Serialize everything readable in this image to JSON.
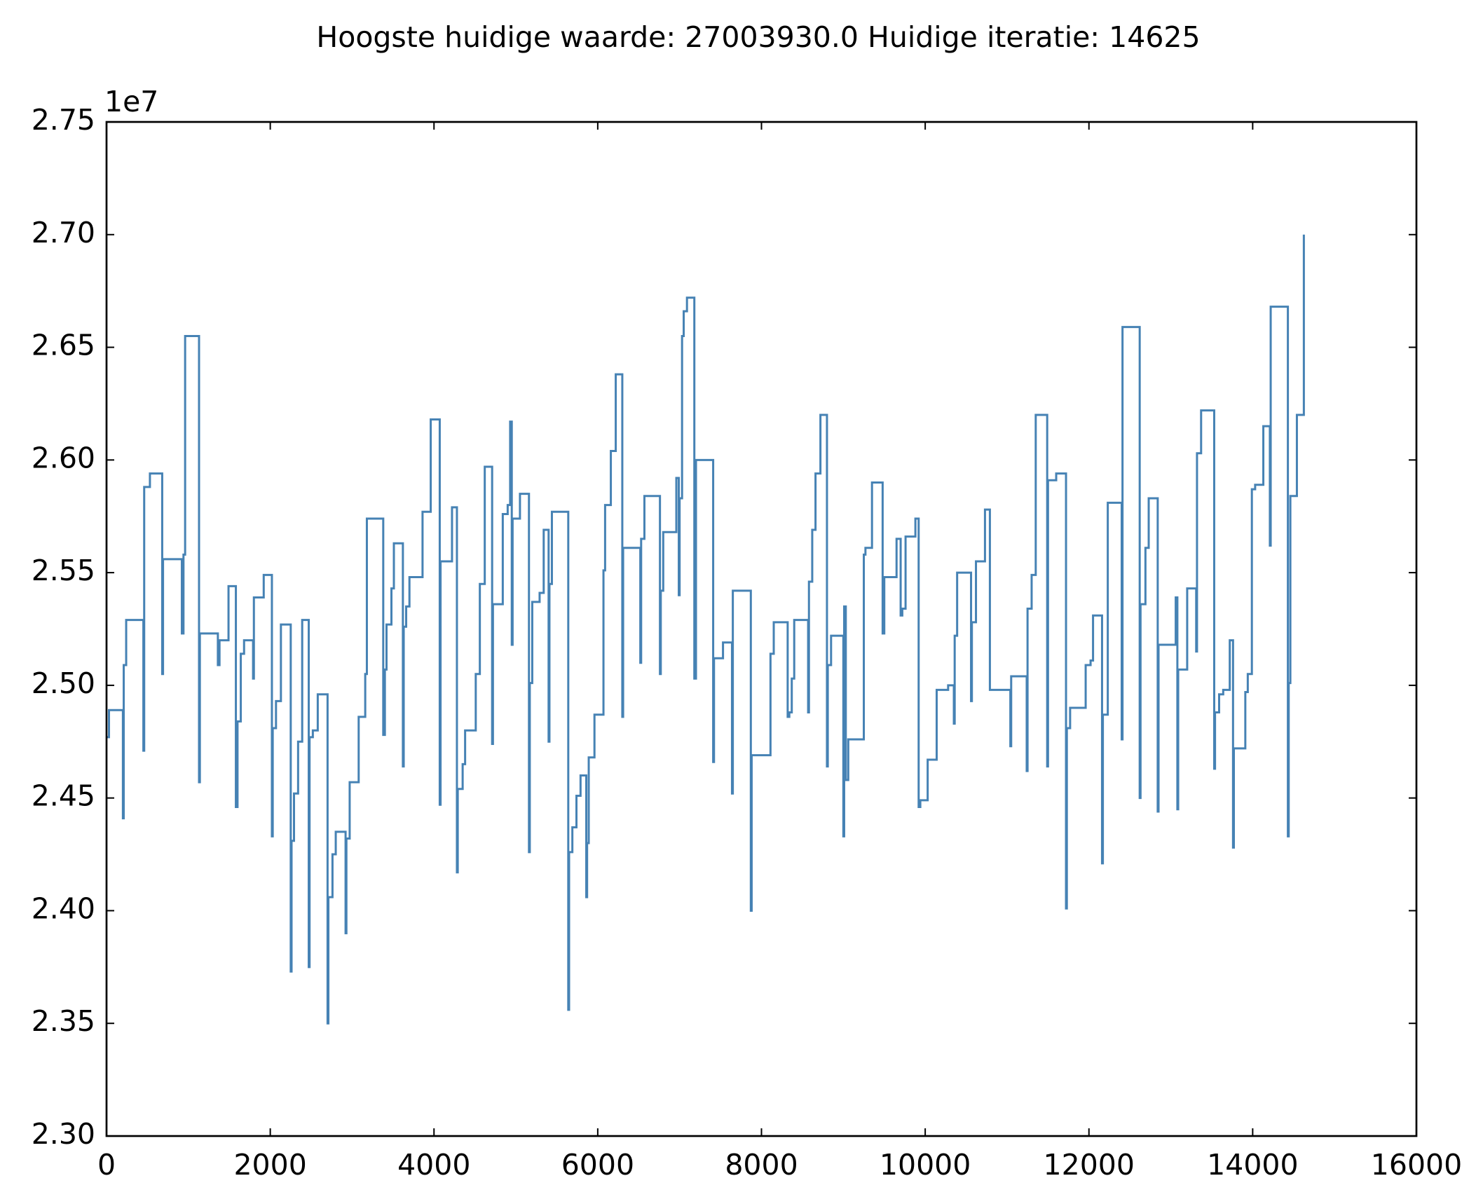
{
  "chart_data": {
    "type": "line",
    "title": "Hoogste huidige waarde: 27003930.0 Huidige iteratie: 14625",
    "y_offset_label": "1e7",
    "color": "#4682b4",
    "x": [
      0,
      30,
      30,
      200,
      200,
      210,
      210,
      240,
      240,
      450,
      450,
      460,
      460,
      530,
      530,
      680,
      680,
      690,
      690,
      920,
      920,
      940,
      940,
      960,
      960,
      1130,
      1130,
      1140,
      1140,
      1360,
      1360,
      1380,
      1380,
      1490,
      1490,
      1580,
      1580,
      1600,
      1600,
      1640,
      1640,
      1680,
      1680,
      1790,
      1790,
      1800,
      1800,
      1920,
      1920,
      2020,
      2020,
      2030,
      2030,
      2070,
      2070,
      2130,
      2130,
      2250,
      2250,
      2260,
      2260,
      2290,
      2290,
      2340,
      2340,
      2390,
      2390,
      2470,
      2470,
      2480,
      2480,
      2520,
      2520,
      2580,
      2580,
      2700,
      2700,
      2710,
      2710,
      2760,
      2760,
      2800,
      2800,
      2920,
      2920,
      2930,
      2930,
      2970,
      2970,
      3080,
      3080,
      3160,
      3160,
      3180,
      3180,
      3380,
      3380,
      3400,
      3400,
      3420,
      3420,
      3480,
      3480,
      3510,
      3510,
      3620,
      3620,
      3630,
      3630,
      3660,
      3660,
      3700,
      3700,
      3860,
      3860,
      3960,
      3960,
      4070,
      4070,
      4080,
      4080,
      4220,
      4220,
      4280,
      4280,
      4290,
      4290,
      4350,
      4350,
      4380,
      4380,
      4510,
      4510,
      4560,
      4560,
      4620,
      4620,
      4710,
      4710,
      4720,
      4720,
      4840,
      4840,
      4900,
      4900,
      4930,
      4930,
      4950,
      4950,
      4960,
      4960,
      5050,
      5050,
      5160,
      5160,
      5170,
      5170,
      5200,
      5200,
      5290,
      5290,
      5340,
      5340,
      5400,
      5400,
      5410,
      5410,
      5440,
      5440,
      5640,
      5640,
      5650,
      5650,
      5690,
      5690,
      5740,
      5740,
      5790,
      5790,
      5860,
      5860,
      5870,
      5870,
      5890,
      5890,
      5960,
      5960,
      6070,
      6070,
      6090,
      6090,
      6160,
      6160,
      6220,
      6220,
      6300,
      6300,
      6310,
      6310,
      6520,
      6520,
      6530,
      6530,
      6570,
      6570,
      6760,
      6760,
      6770,
      6770,
      6800,
      6800,
      6960,
      6960,
      6990,
      6990,
      7000,
      7000,
      7030,
      7030,
      7050,
      7050,
      7090,
      7090,
      7180,
      7180,
      7200,
      7200,
      7410,
      7410,
      7420,
      7420,
      7530,
      7530,
      7640,
      7640,
      7650,
      7650,
      7870,
      7870,
      7880,
      7880,
      8110,
      8110,
      8150,
      8150,
      8320,
      8320,
      8340,
      8340,
      8370,
      8370,
      8400,
      8400,
      8570,
      8570,
      8580,
      8580,
      8620,
      8620,
      8660,
      8660,
      8720,
      8720,
      8800,
      8800,
      8810,
      8810,
      8850,
      8850,
      9000,
      9000,
      9010,
      9010,
      9030,
      9030,
      9060,
      9060,
      9250,
      9250,
      9270,
      9270,
      9350,
      9350,
      9480,
      9480,
      9500,
      9500,
      9650,
      9650,
      9700,
      9700,
      9720,
      9720,
      9760,
      9760,
      9880,
      9880,
      9920,
      9920,
      9940,
      9940,
      10030,
      10030,
      10140,
      10140,
      10280,
      10280,
      10350,
      10350,
      10360,
      10360,
      10390,
      10390,
      10560,
      10560,
      10570,
      10570,
      10620,
      10620,
      10730,
      10730,
      10790,
      10790,
      11040,
      11040,
      11050,
      11050,
      11240,
      11240,
      11250,
      11250,
      11300,
      11300,
      11350,
      11350,
      11490,
      11490,
      11500,
      11500,
      11600,
      11600,
      11720,
      11720,
      11730,
      11730,
      11770,
      11770,
      11960,
      11960,
      12020,
      12020,
      12050,
      12050,
      12160,
      12160,
      12170,
      12170,
      12230,
      12230,
      12400,
      12400,
      12410,
      12410,
      12620,
      12620,
      12630,
      12630,
      12690,
      12690,
      12730,
      12730,
      12840,
      12840,
      12850,
      12850,
      13060,
      13060,
      13080,
      13080,
      13090,
      13090,
      13200,
      13200,
      13310,
      13310,
      13320,
      13320,
      13370,
      13370,
      13530,
      13530,
      13540,
      13540,
      13590,
      13590,
      13640,
      13640,
      13720,
      13720,
      13760,
      13760,
      13770,
      13770,
      13910,
      13910,
      13940,
      13940,
      13990,
      13990,
      14030,
      14030,
      14130,
      14130,
      14210,
      14210,
      14220,
      14220,
      14430,
      14430,
      14440,
      14440,
      14460,
      14460,
      14540,
      14540,
      14625,
      14625
    ],
    "values": [
      2.477,
      2.477,
      2.489,
      2.489,
      2.441,
      2.441,
      2.509,
      2.509,
      2.529,
      2.529,
      2.471,
      2.471,
      2.588,
      2.588,
      2.594,
      2.594,
      2.505,
      2.505,
      2.556,
      2.556,
      2.523,
      2.523,
      2.558,
      2.558,
      2.655,
      2.655,
      2.457,
      2.457,
      2.523,
      2.523,
      2.509,
      2.509,
      2.52,
      2.52,
      2.544,
      2.544,
      2.446,
      2.446,
      2.484,
      2.484,
      2.514,
      2.514,
      2.52,
      2.52,
      2.503,
      2.503,
      2.539,
      2.539,
      2.549,
      2.549,
      2.433,
      2.433,
      2.481,
      2.481,
      2.493,
      2.493,
      2.527,
      2.527,
      2.373,
      2.373,
      2.431,
      2.431,
      2.452,
      2.452,
      2.475,
      2.475,
      2.529,
      2.529,
      2.375,
      2.375,
      2.477,
      2.477,
      2.48,
      2.48,
      2.496,
      2.496,
      2.35,
      2.35,
      2.406,
      2.406,
      2.425,
      2.425,
      2.435,
      2.435,
      2.39,
      2.39,
      2.432,
      2.432,
      2.457,
      2.457,
      2.486,
      2.486,
      2.505,
      2.505,
      2.574,
      2.574,
      2.478,
      2.478,
      2.507,
      2.507,
      2.527,
      2.527,
      2.543,
      2.543,
      2.563,
      2.563,
      2.464,
      2.464,
      2.526,
      2.526,
      2.535,
      2.535,
      2.548,
      2.548,
      2.577,
      2.577,
      2.618,
      2.618,
      2.447,
      2.447,
      2.555,
      2.555,
      2.579,
      2.579,
      2.417,
      2.417,
      2.454,
      2.454,
      2.465,
      2.465,
      2.48,
      2.48,
      2.505,
      2.505,
      2.545,
      2.545,
      2.597,
      2.597,
      2.474,
      2.474,
      2.536,
      2.536,
      2.576,
      2.576,
      2.58,
      2.58,
      2.617,
      2.617,
      2.518,
      2.518,
      2.574,
      2.574,
      2.585,
      2.585,
      2.426,
      2.426,
      2.501,
      2.501,
      2.537,
      2.537,
      2.541,
      2.541,
      2.569,
      2.569,
      2.475,
      2.475,
      2.545,
      2.545,
      2.577,
      2.577,
      2.356,
      2.356,
      2.426,
      2.426,
      2.437,
      2.437,
      2.451,
      2.451,
      2.46,
      2.46,
      2.406,
      2.406,
      2.43,
      2.43,
      2.468,
      2.468,
      2.487,
      2.487,
      2.551,
      2.551,
      2.58,
      2.58,
      2.604,
      2.604,
      2.638,
      2.638,
      2.486,
      2.486,
      2.561,
      2.561,
      2.51,
      2.51,
      2.565,
      2.565,
      2.584,
      2.584,
      2.505,
      2.505,
      2.542,
      2.542,
      2.568,
      2.568,
      2.592,
      2.592,
      2.54,
      2.54,
      2.583,
      2.583,
      2.655,
      2.655,
      2.666,
      2.666,
      2.672,
      2.672,
      2.503,
      2.503,
      2.6,
      2.6,
      2.466,
      2.466,
      2.512,
      2.512,
      2.519,
      2.519,
      2.452,
      2.452,
      2.542,
      2.542,
      2.4,
      2.4,
      2.469,
      2.469,
      2.514,
      2.514,
      2.528,
      2.528,
      2.486,
      2.486,
      2.488,
      2.488,
      2.503,
      2.503,
      2.529,
      2.529,
      2.488,
      2.488,
      2.546,
      2.546,
      2.569,
      2.569,
      2.594,
      2.594,
      2.62,
      2.62,
      2.464,
      2.464,
      2.509,
      2.509,
      2.522,
      2.522,
      2.433,
      2.433,
      2.535,
      2.535,
      2.458,
      2.458,
      2.476,
      2.476,
      2.558,
      2.558,
      2.561,
      2.561,
      2.59,
      2.59,
      2.523,
      2.523,
      2.548,
      2.548,
      2.565,
      2.565,
      2.531,
      2.531,
      2.534,
      2.534,
      2.566,
      2.566,
      2.574,
      2.574,
      2.446,
      2.446,
      2.449,
      2.449,
      2.467,
      2.467,
      2.498,
      2.498,
      2.5,
      2.5,
      2.483,
      2.483,
      2.522,
      2.522,
      2.55,
      2.55,
      2.493,
      2.493,
      2.528,
      2.528,
      2.555,
      2.555,
      2.578,
      2.578,
      2.498,
      2.498,
      2.473,
      2.473,
      2.504,
      2.504,
      2.462,
      2.462,
      2.534,
      2.534,
      2.549,
      2.549,
      2.62,
      2.62,
      2.464,
      2.464,
      2.591,
      2.591,
      2.594,
      2.594,
      2.401,
      2.401,
      2.481,
      2.481,
      2.49,
      2.49,
      2.509,
      2.509,
      2.511,
      2.511,
      2.531,
      2.531,
      2.421,
      2.421,
      2.487,
      2.487,
      2.581,
      2.581,
      2.476,
      2.476,
      2.659,
      2.659,
      2.45,
      2.45,
      2.536,
      2.536,
      2.561,
      2.561,
      2.583,
      2.583,
      2.444,
      2.444,
      2.518,
      2.518,
      2.539,
      2.539,
      2.445,
      2.445,
      2.507,
      2.507,
      2.543,
      2.543,
      2.515,
      2.515,
      2.603,
      2.603,
      2.622,
      2.622,
      2.463,
      2.463,
      2.488,
      2.488,
      2.496,
      2.496,
      2.498,
      2.498,
      2.52,
      2.52,
      2.428,
      2.428,
      2.472,
      2.472,
      2.497,
      2.497,
      2.505,
      2.505,
      2.587,
      2.587,
      2.589,
      2.589,
      2.615,
      2.615,
      2.562,
      2.562,
      2.668,
      2.668,
      2.433,
      2.433,
      2.501,
      2.501,
      2.584,
      2.584,
      2.62,
      2.62,
      2.7
    ],
    "xlim": [
      0,
      16000
    ],
    "xticks": [
      0,
      2000,
      4000,
      6000,
      8000,
      10000,
      12000,
      14000,
      16000
    ],
    "ylim": [
      2.3,
      2.75
    ],
    "yticks": [
      {
        "value": 2.3,
        "label": "2.30"
      },
      {
        "value": 2.35,
        "label": "2.35"
      },
      {
        "value": 2.4,
        "label": "2.40"
      },
      {
        "value": 2.45,
        "label": "2.45"
      },
      {
        "value": 2.5,
        "label": "2.50"
      },
      {
        "value": 2.55,
        "label": "2.55"
      },
      {
        "value": 2.6,
        "label": "2.60"
      },
      {
        "value": 2.65,
        "label": "2.65"
      },
      {
        "value": 2.7,
        "label": "2.70"
      },
      {
        "value": 2.75,
        "label": "2.75"
      }
    ],
    "grid": false
  }
}
